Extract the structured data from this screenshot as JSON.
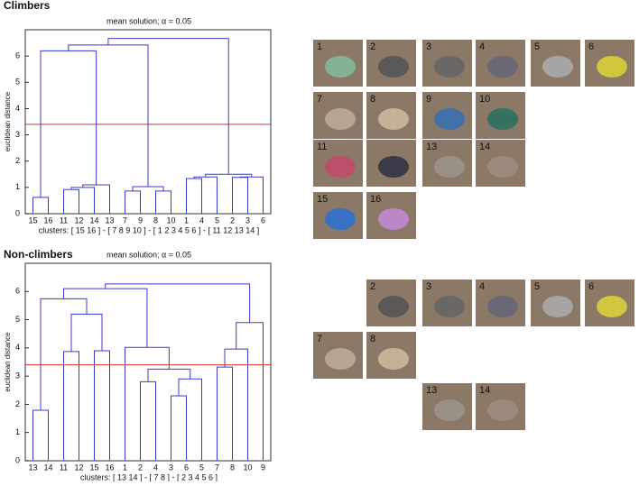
{
  "chart_data": [
    {
      "type": "dendrogram",
      "heading": "Climbers",
      "title": "mean solution; α = 0.05",
      "ylabel": "euclidean distance",
      "leaves": [
        15,
        16,
        11,
        12,
        14,
        13,
        7,
        9,
        8,
        10,
        1,
        4,
        5,
        2,
        3,
        6
      ],
      "merges": [
        [
          0,
          1,
          0.62
        ],
        [
          2,
          3,
          0.92
        ],
        [
          17,
          4,
          1.0
        ],
        [
          18,
          5,
          1.1
        ],
        [
          16,
          19,
          6.2
        ],
        [
          6,
          7,
          0.86
        ],
        [
          8,
          9,
          0.86
        ],
        [
          21,
          22,
          1.03
        ],
        [
          20,
          23,
          6.42
        ],
        [
          10,
          11,
          1.34
        ],
        [
          25,
          12,
          1.4
        ],
        [
          13,
          14,
          1.38
        ],
        [
          27,
          15,
          1.4
        ],
        [
          26,
          28,
          1.5
        ],
        [
          24,
          29,
          6.67
        ]
      ],
      "threshold": 3.4,
      "threshold_color": "#e03030",
      "color": "#3a3ad0",
      "ylim": [
        0,
        7
      ],
      "yticks": [
        0,
        1,
        2,
        3,
        4,
        5,
        6
      ],
      "clusters": "clusters: [ 15  16 ]   -   [ 7  8  9  10 ]   -   [ 1  2  3  4  5  6 ]   -   [ 11  12  13  14 ]"
    },
    {
      "type": "dendrogram",
      "heading": "Non-climbers",
      "title": "mean solution; α = 0.05",
      "ylabel": "euclidean distance",
      "leaves": [
        13,
        14,
        11,
        12,
        15,
        16,
        1,
        2,
        4,
        3,
        6,
        5,
        7,
        8,
        10,
        9
      ],
      "merges": [
        [
          0,
          1,
          1.79
        ],
        [
          2,
          3,
          3.87
        ],
        [
          4,
          5,
          3.9
        ],
        [
          17,
          18,
          5.2
        ],
        [
          16,
          19,
          5.74
        ],
        [
          7,
          8,
          2.8
        ],
        [
          9,
          10,
          2.3
        ],
        [
          22,
          11,
          2.9
        ],
        [
          21,
          23,
          3.25
        ],
        [
          6,
          24,
          4.02
        ],
        [
          20,
          25,
          6.1
        ],
        [
          12,
          13,
          3.32
        ],
        [
          27,
          14,
          3.96
        ],
        [
          28,
          15,
          4.9
        ],
        [
          26,
          29,
          6.27
        ]
      ],
      "threshold": 3.4,
      "threshold_color": "#e03030",
      "color": "#3a3ad0",
      "ylim": [
        0,
        7
      ],
      "yticks": [
        0,
        1,
        2,
        3,
        4,
        5,
        6
      ],
      "clusters": "clusters: [ 13  14 ]   -   [ 7  8 ]   -   [ 2  3  4  5  6 ]"
    }
  ],
  "holds": {
    "climbers": [
      "1",
      "2",
      "3",
      "4",
      "5",
      "6",
      "7",
      "8",
      "9",
      "10",
      "11",
      "12",
      "13",
      "14",
      "15",
      "16"
    ],
    "non_climbers": [
      "2",
      "3",
      "4",
      "5",
      "6",
      "7",
      "8",
      "13",
      "14"
    ]
  }
}
